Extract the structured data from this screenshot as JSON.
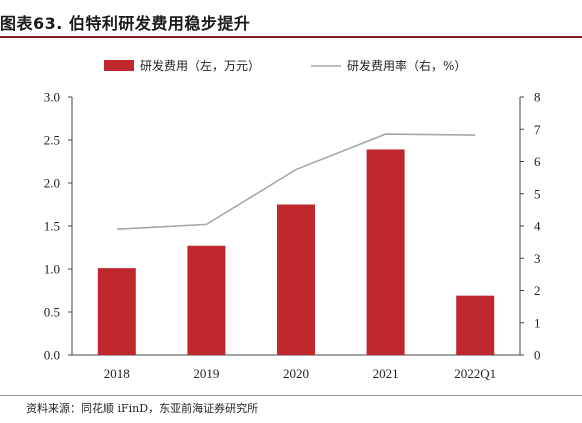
{
  "figure": {
    "title": "图表63.  伯特利研发费用稳步提升",
    "source": "资料来源：同花顺 iFinD，东亚前海证券研究所"
  },
  "colors": {
    "bar": "#c0272d",
    "line": "#a6a6a6",
    "title_rule": "#7f1d24"
  },
  "chart_data": {
    "type": "bar",
    "categories": [
      "2018",
      "2019",
      "2020",
      "2021",
      "2022Q1"
    ],
    "series": [
      {
        "name": "研发费用（左，万元）",
        "type": "bar",
        "axis": "left",
        "values": [
          1.01,
          1.27,
          1.75,
          2.39,
          0.69
        ]
      },
      {
        "name": "研发费用率（右，%）",
        "type": "line",
        "axis": "right",
        "values": [
          3.9,
          4.05,
          5.75,
          6.85,
          6.82
        ]
      }
    ],
    "ylim_left": [
      0,
      3.0
    ],
    "yticks_left": [
      "0.0",
      "0.5",
      "1.0",
      "1.5",
      "2.0",
      "2.5",
      "3.0"
    ],
    "ylim_right": [
      0,
      8
    ],
    "yticks_right": [
      "0",
      "1",
      "2",
      "3",
      "4",
      "5",
      "6",
      "7",
      "8"
    ],
    "legend_position": "top",
    "grid": false
  }
}
